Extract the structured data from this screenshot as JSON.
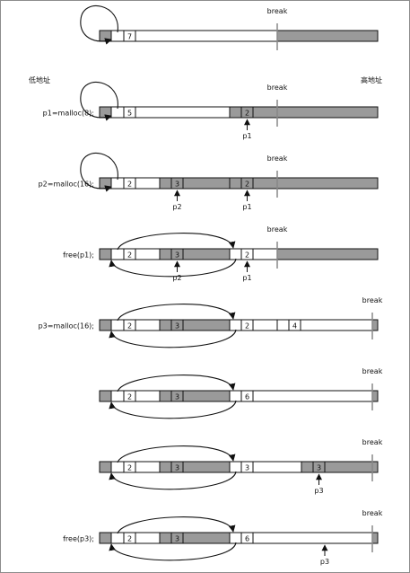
{
  "axis_labels": {
    "low": "低地址",
    "high": "高地址"
  },
  "break_label": "break",
  "colors": {
    "used": "#9a9a9a",
    "free": "#ffffff",
    "stroke": "#111111",
    "break_line": "#888888"
  },
  "rows": [
    {
      "call": "",
      "break_pos": "mid",
      "headers": [
        {
          "slot": "h1",
          "value": "7"
        }
      ],
      "pointers": [],
      "free_list": "self"
    },
    {
      "call": "p1=malloc(8);",
      "break_pos": "mid",
      "headers": [
        {
          "slot": "h1",
          "value": "5"
        },
        {
          "slot": "h3",
          "value": "2"
        }
      ],
      "pointers": [
        {
          "at": "h3",
          "label": "p1"
        }
      ],
      "free_list": "self"
    },
    {
      "call": "p2=malloc(16);",
      "break_pos": "mid",
      "headers": [
        {
          "slot": "h1",
          "value": "2"
        },
        {
          "slot": "h2",
          "value": "3"
        },
        {
          "slot": "h3",
          "value": "2"
        }
      ],
      "pointers": [
        {
          "at": "h2",
          "label": "p2"
        },
        {
          "at": "h3",
          "label": "p1"
        }
      ],
      "free_list": "self"
    },
    {
      "call": "free(p1);",
      "break_pos": "mid",
      "headers": [
        {
          "slot": "h1",
          "value": "2"
        },
        {
          "slot": "h2",
          "value": "3"
        },
        {
          "slot": "h3",
          "value": "2"
        }
      ],
      "pointers": [
        {
          "at": "h2",
          "label": "p2"
        },
        {
          "at": "h3",
          "label": "p1"
        }
      ],
      "free_list": "two"
    },
    {
      "call": "p3=malloc(16);",
      "break_pos": "end",
      "headers": [
        {
          "slot": "h1",
          "value": "2"
        },
        {
          "slot": "h2",
          "value": "3"
        },
        {
          "slot": "h3",
          "value": "2"
        },
        {
          "slot": "h4",
          "value": "4"
        }
      ],
      "pointers": [],
      "free_list": "two"
    },
    {
      "call": "",
      "break_pos": "end",
      "headers": [
        {
          "slot": "h1",
          "value": "2"
        },
        {
          "slot": "h2",
          "value": "3"
        },
        {
          "slot": "h3",
          "value": "6"
        }
      ],
      "pointers": [],
      "free_list": "two"
    },
    {
      "call": "",
      "break_pos": "end",
      "headers": [
        {
          "slot": "h1",
          "value": "2"
        },
        {
          "slot": "h2",
          "value": "3"
        },
        {
          "slot": "h3",
          "value": "3"
        },
        {
          "slot": "h5",
          "value": "3"
        }
      ],
      "pointers": [
        {
          "at": "h5",
          "label": "p3"
        }
      ],
      "free_list": "two"
    },
    {
      "call": "free(p3);",
      "break_pos": "end",
      "headers": [
        {
          "slot": "h1",
          "value": "2"
        },
        {
          "slot": "h2",
          "value": "3"
        },
        {
          "slot": "h3",
          "value": "6"
        }
      ],
      "pointers": [
        {
          "at": "p3mid",
          "label": "p3"
        }
      ],
      "free_list": "two"
    }
  ]
}
